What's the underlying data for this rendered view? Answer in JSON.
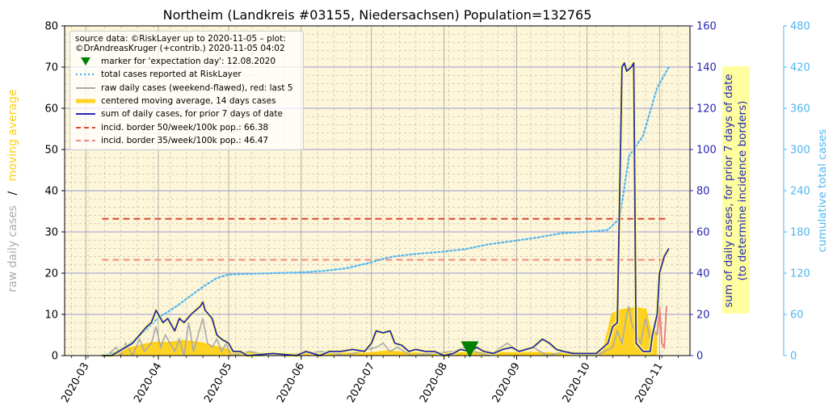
{
  "chart_data": {
    "type": "line",
    "title": "Northeim (Landkreis #03155, Niedersachsen) Population=132765",
    "ylabel_left_gray": "raw daily cases",
    "ylabel_left_sep": "/",
    "ylabel_left_gold": "moving average",
    "ylabel_right1_line1": "sum of daily cases, for prior 7 days of date",
    "ylabel_right1_line2": "(to determine incidence borders)",
    "ylabel_right2": "cumulative total cases",
    "ylim_left": [
      0,
      80
    ],
    "ylim_right1": [
      0,
      160
    ],
    "ylim_right2": [
      0,
      480
    ],
    "yticks_left": [
      "0",
      "10",
      "20",
      "30",
      "40",
      "50",
      "60",
      "70",
      "80"
    ],
    "yticks_right1": [
      "0",
      "20",
      "40",
      "60",
      "80",
      "100",
      "120",
      "140",
      "160"
    ],
    "yticks_right2": [
      "0",
      "60",
      "120",
      "180",
      "240",
      "300",
      "360",
      "420",
      "480"
    ],
    "xticks": [
      "2020-03",
      "2020-04",
      "2020-05",
      "2020-06",
      "2020-07",
      "2020-08",
      "2020-09",
      "2020-10",
      "2020-11"
    ],
    "grid": true,
    "legend_position": "top-left",
    "legend": {
      "source": "source data: ©RiskLayer up to 2020-11-05 – plot: ©DrAndreasKruger (+contrib.) 2020-11-05 04:02",
      "items": [
        {
          "label": "marker for 'expectation day': 12.08.2020",
          "kind": "marker",
          "color": "#008000"
        },
        {
          "label": "total cases reported at RiskLayer",
          "kind": "dotted",
          "color": "#4fb6f0"
        },
        {
          "label": "raw daily cases (weekend-flawed), red: last 5",
          "kind": "line",
          "color": "#aaaaaa"
        },
        {
          "label": "centered moving average, 14 days cases",
          "kind": "thick",
          "color": "#ffd42a"
        },
        {
          "label": "sum of daily cases, for prior 7 days of date",
          "kind": "line",
          "color": "#2828b4"
        },
        {
          "label": "incid. border 50/week/100k pop.: 66.38",
          "kind": "dashed",
          "color": "#dd4433"
        },
        {
          "label": "incid. border 35/week/100k pop.: 46.47",
          "kind": "dashed",
          "color": "#f08a80"
        }
      ]
    },
    "colors": {
      "plot_bg": "#fdf6d8",
      "raw": "#aaaaaa",
      "raw_last5": "#e87a7a",
      "moving_avg": "#ffcf10",
      "weekly_sum": "#2828b4",
      "cumulative": "#4fb6f0",
      "border50": "#dd4433",
      "border35": "#f08a80",
      "marker": "#008000",
      "right1_axis": "#2828b4",
      "right2_axis": "#4fb6f0",
      "annot_box": "#ffffa0"
    },
    "incidence_border_50": 66.38,
    "incidence_border_35": 46.47,
    "expectation_marker": {
      "date": "2020-08-12",
      "value": 1.5
    },
    "series": [
      {
        "name": "total cases reported at RiskLayer",
        "axis": "right2",
        "points": [
          [
            "2020-03-08",
            0
          ],
          [
            "2020-03-14",
            5
          ],
          [
            "2020-03-20",
            18
          ],
          [
            "2020-03-26",
            35
          ],
          [
            "2020-04-01",
            55
          ],
          [
            "2020-04-08",
            70
          ],
          [
            "2020-04-14",
            85
          ],
          [
            "2020-04-20",
            100
          ],
          [
            "2020-04-26",
            113
          ],
          [
            "2020-05-01",
            118
          ],
          [
            "2020-05-10",
            119
          ],
          [
            "2020-05-20",
            120
          ],
          [
            "2020-06-01",
            121
          ],
          [
            "2020-06-10",
            123
          ],
          [
            "2020-06-20",
            127
          ],
          [
            "2020-06-30",
            135
          ],
          [
            "2020-07-05",
            140
          ],
          [
            "2020-07-10",
            144
          ],
          [
            "2020-07-20",
            148
          ],
          [
            "2020-07-31",
            151
          ],
          [
            "2020-08-10",
            155
          ],
          [
            "2020-08-20",
            162
          ],
          [
            "2020-08-31",
            167
          ],
          [
            "2020-09-10",
            172
          ],
          [
            "2020-09-20",
            178
          ],
          [
            "2020-09-30",
            180
          ],
          [
            "2020-10-05",
            181
          ],
          [
            "2020-10-10",
            183
          ],
          [
            "2020-10-15",
            200
          ],
          [
            "2020-10-19",
            290
          ],
          [
            "2020-10-25",
            320
          ],
          [
            "2020-10-31",
            390
          ],
          [
            "2020-11-05",
            420
          ]
        ]
      },
      {
        "name": "raw daily cases (weekend-flawed)",
        "axis": "left",
        "points": [
          [
            "2020-03-10",
            0
          ],
          [
            "2020-03-14",
            2
          ],
          [
            "2020-03-16",
            0
          ],
          [
            "2020-03-18",
            3
          ],
          [
            "2020-03-21",
            0
          ],
          [
            "2020-03-24",
            4
          ],
          [
            "2020-03-26",
            1
          ],
          [
            "2020-03-29",
            3
          ],
          [
            "2020-03-31",
            7
          ],
          [
            "2020-04-02",
            2
          ],
          [
            "2020-04-04",
            5
          ],
          [
            "2020-04-06",
            3
          ],
          [
            "2020-04-08",
            1
          ],
          [
            "2020-04-10",
            4
          ],
          [
            "2020-04-12",
            0
          ],
          [
            "2020-04-14",
            8
          ],
          [
            "2020-04-16",
            1
          ],
          [
            "2020-04-18",
            5
          ],
          [
            "2020-04-20",
            9
          ],
          [
            "2020-04-22",
            3
          ],
          [
            "2020-04-24",
            2
          ],
          [
            "2020-04-26",
            4
          ],
          [
            "2020-04-28",
            1
          ],
          [
            "2020-04-30",
            3
          ],
          [
            "2020-05-02",
            0
          ],
          [
            "2020-05-10",
            1
          ],
          [
            "2020-05-20",
            0
          ],
          [
            "2020-06-10",
            1
          ],
          [
            "2020-06-20",
            0
          ],
          [
            "2020-07-03",
            2
          ],
          [
            "2020-07-06",
            3
          ],
          [
            "2020-07-09",
            1
          ],
          [
            "2020-07-12",
            2
          ],
          [
            "2020-07-18",
            0
          ],
          [
            "2020-08-05",
            1
          ],
          [
            "2020-08-10",
            2
          ],
          [
            "2020-08-14",
            1
          ],
          [
            "2020-08-20",
            0
          ],
          [
            "2020-08-28",
            3
          ],
          [
            "2020-09-02",
            1
          ],
          [
            "2020-09-08",
            2
          ],
          [
            "2020-09-14",
            0
          ],
          [
            "2020-09-22",
            1
          ],
          [
            "2020-10-05",
            0
          ],
          [
            "2020-10-12",
            2
          ],
          [
            "2020-10-14",
            6
          ],
          [
            "2020-10-16",
            3
          ],
          [
            "2020-10-18",
            10
          ],
          [
            "2020-10-19",
            12
          ],
          [
            "2020-10-20",
            8
          ],
          [
            "2020-10-22",
            5
          ],
          [
            "2020-10-24",
            3
          ],
          [
            "2020-10-26",
            9
          ],
          [
            "2020-10-28",
            4
          ],
          [
            "2020-10-30",
            6
          ],
          [
            "2020-10-31",
            5
          ]
        ]
      },
      {
        "name": "raw daily cases, last 5",
        "axis": "left",
        "points": [
          [
            "2020-10-31",
            5
          ],
          [
            "2020-11-01",
            12
          ],
          [
            "2020-11-02",
            3
          ],
          [
            "2020-11-03",
            2
          ],
          [
            "2020-11-04",
            12
          ]
        ]
      },
      {
        "name": "centered moving average, 14 days cases",
        "axis": "left",
        "points": [
          [
            "2020-03-10",
            0
          ],
          [
            "2020-03-15",
            1
          ],
          [
            "2020-03-22",
            2
          ],
          [
            "2020-03-29",
            3
          ],
          [
            "2020-04-05",
            3
          ],
          [
            "2020-04-12",
            3.5
          ],
          [
            "2020-04-19",
            3
          ],
          [
            "2020-04-26",
            2
          ],
          [
            "2020-05-03",
            1
          ],
          [
            "2020-05-10",
            0.5
          ],
          [
            "2020-05-20",
            0.3
          ],
          [
            "2020-06-10",
            0.3
          ],
          [
            "2020-07-01",
            0.5
          ],
          [
            "2020-07-08",
            1
          ],
          [
            "2020-07-15",
            0.6
          ],
          [
            "2020-07-25",
            0.3
          ],
          [
            "2020-08-10",
            0.5
          ],
          [
            "2020-08-20",
            0.6
          ],
          [
            "2020-08-31",
            0.5
          ],
          [
            "2020-09-10",
            0.6
          ],
          [
            "2020-09-20",
            0.3
          ],
          [
            "2020-10-01",
            0.2
          ],
          [
            "2020-10-08",
            0.8
          ],
          [
            "2020-10-12",
            10
          ],
          [
            "2020-10-16",
            11
          ],
          [
            "2020-10-22",
            11.5
          ],
          [
            "2020-10-26",
            11
          ],
          [
            "2020-10-28",
            6
          ],
          [
            "2020-10-31",
            5
          ]
        ]
      },
      {
        "name": "sum of daily cases, for prior 7 days of date",
        "axis": "right1",
        "points": [
          [
            "2020-03-08",
            0
          ],
          [
            "2020-03-12",
            0
          ],
          [
            "2020-03-15",
            2
          ],
          [
            "2020-03-18",
            4
          ],
          [
            "2020-03-21",
            6
          ],
          [
            "2020-03-24",
            10
          ],
          [
            "2020-03-27",
            14
          ],
          [
            "2020-03-29",
            16
          ],
          [
            "2020-03-31",
            22
          ],
          [
            "2020-04-01",
            20
          ],
          [
            "2020-04-03",
            16
          ],
          [
            "2020-04-05",
            18
          ],
          [
            "2020-04-08",
            12
          ],
          [
            "2020-04-10",
            18
          ],
          [
            "2020-04-12",
            16
          ],
          [
            "2020-04-15",
            20
          ],
          [
            "2020-04-17",
            22
          ],
          [
            "2020-04-19",
            24
          ],
          [
            "2020-04-20",
            26
          ],
          [
            "2020-04-21",
            22
          ],
          [
            "2020-04-24",
            18
          ],
          [
            "2020-04-26",
            10
          ],
          [
            "2020-04-28",
            8
          ],
          [
            "2020-05-01",
            6
          ],
          [
            "2020-05-03",
            2
          ],
          [
            "2020-05-06",
            2
          ],
          [
            "2020-05-09",
            0
          ],
          [
            "2020-05-20",
            1
          ],
          [
            "2020-05-30",
            0
          ],
          [
            "2020-06-03",
            2
          ],
          [
            "2020-06-06",
            1
          ],
          [
            "2020-06-09",
            0
          ],
          [
            "2020-06-13",
            2
          ],
          [
            "2020-06-18",
            2
          ],
          [
            "2020-06-23",
            3
          ],
          [
            "2020-06-28",
            2
          ],
          [
            "2020-07-01",
            6
          ],
          [
            "2020-07-03",
            12
          ],
          [
            "2020-07-06",
            11
          ],
          [
            "2020-07-09",
            12
          ],
          [
            "2020-07-11",
            6
          ],
          [
            "2020-07-14",
            5
          ],
          [
            "2020-07-17",
            2
          ],
          [
            "2020-07-20",
            3
          ],
          [
            "2020-07-24",
            2
          ],
          [
            "2020-07-28",
            2
          ],
          [
            "2020-08-01",
            0
          ],
          [
            "2020-08-05",
            1
          ],
          [
            "2020-08-08",
            3
          ],
          [
            "2020-08-12",
            2
          ],
          [
            "2020-08-15",
            4
          ],
          [
            "2020-08-18",
            2
          ],
          [
            "2020-08-22",
            1
          ],
          [
            "2020-08-26",
            3
          ],
          [
            "2020-08-30",
            4
          ],
          [
            "2020-09-02",
            2
          ],
          [
            "2020-09-05",
            3
          ],
          [
            "2020-09-08",
            4
          ],
          [
            "2020-09-12",
            8
          ],
          [
            "2020-09-15",
            6
          ],
          [
            "2020-09-18",
            3
          ],
          [
            "2020-09-21",
            2
          ],
          [
            "2020-09-25",
            1
          ],
          [
            "2020-09-30",
            1
          ],
          [
            "2020-10-05",
            1
          ],
          [
            "2020-10-08",
            4
          ],
          [
            "2020-10-10",
            6
          ],
          [
            "2020-10-12",
            14
          ],
          [
            "2020-10-14",
            16
          ],
          [
            "2020-10-16",
            140
          ],
          [
            "2020-10-17",
            142
          ],
          [
            "2020-10-18",
            138
          ],
          [
            "2020-10-20",
            140
          ],
          [
            "2020-10-21",
            142
          ],
          [
            "2020-10-22",
            6
          ],
          [
            "2020-10-25",
            2
          ],
          [
            "2020-10-28",
            2
          ],
          [
            "2020-10-29",
            10
          ],
          [
            "2020-10-31",
            20
          ],
          [
            "2020-11-01",
            40
          ],
          [
            "2020-11-03",
            48
          ],
          [
            "2020-11-05",
            52
          ]
        ]
      }
    ]
  }
}
